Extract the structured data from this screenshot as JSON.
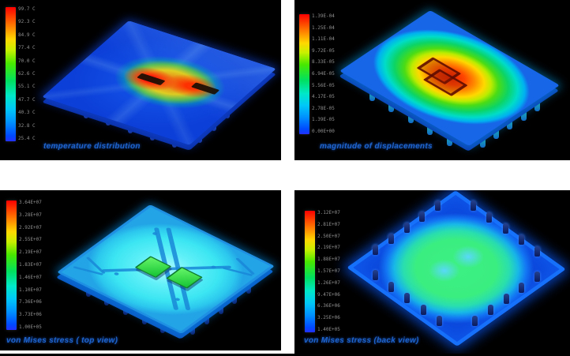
{
  "figure": {
    "colors": {
      "caption_blue": "#1e64cc",
      "panel_background": "#000000",
      "gutter": "#ffffff",
      "legend_label_gray": "#8f8f8f"
    },
    "panels": [
      {
        "id": "temperature",
        "caption": "temperature distribution",
        "legend_ticks": [
          "99.7 C",
          "92.3 C",
          "84.9 C",
          "77.4 C",
          "70.0 C",
          "62.6 C",
          "55.1 C",
          "47.7 C",
          "40.3 C",
          "32.8 C",
          "25.4 C"
        ]
      },
      {
        "id": "displacements",
        "caption": "magnitude of displacements",
        "legend_ticks": [
          "1.39E-04",
          "1.25E-04",
          "1.11E-04",
          "9.72E-05",
          "8.33E-05",
          "6.94E-05",
          "5.56E-05",
          "4.17E-05",
          "2.78E-05",
          "1.39E-05",
          "0.00E+00"
        ]
      },
      {
        "id": "vonmises-top",
        "caption": "von Mises stress ( top view)",
        "legend_ticks": [
          "3.64E+07",
          "3.28E+07",
          "2.92E+07",
          "2.55E+07",
          "2.19E+07",
          "1.83E+07",
          "1.46E+07",
          "1.10E+07",
          "7.36E+06",
          "3.73E+06",
          "1.00E+05"
        ]
      },
      {
        "id": "vonmises-back",
        "caption": "von Mises stress (back view)",
        "legend_ticks": [
          "3.12E+07",
          "2.81E+07",
          "2.50E+07",
          "2.19E+07",
          "1.88E+07",
          "1.57E+07",
          "1.26E+07",
          "9.47E+06",
          "6.36E+06",
          "3.25E+06",
          "1.40E+05"
        ]
      }
    ]
  }
}
